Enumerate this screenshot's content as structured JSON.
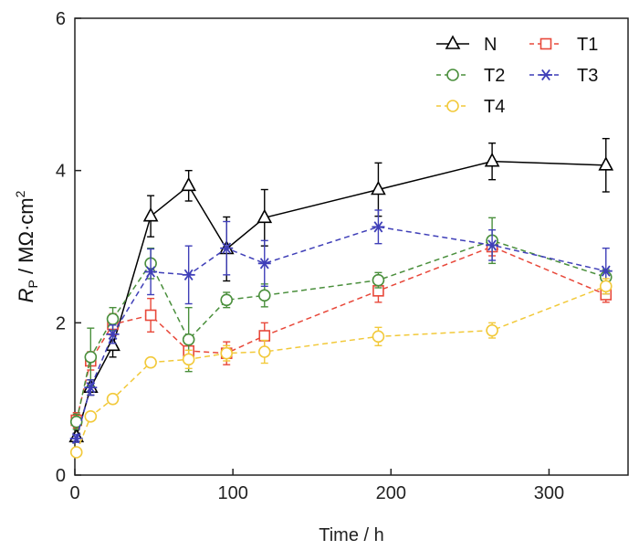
{
  "chart_data": {
    "type": "line",
    "xlabel": "Time / h",
    "ylabel": {
      "main": "R",
      "sub": "P",
      "rest": " / MΩ·cm",
      "sup": "2"
    },
    "xlim": [
      0,
      350
    ],
    "ylim": [
      0,
      6
    ],
    "xticks": [
      0,
      100,
      200,
      300
    ],
    "yticks": [
      0,
      2,
      4,
      6
    ],
    "grid": false,
    "legend_position": "top-right",
    "series": [
      {
        "name": "N",
        "color": "#000000",
        "marker": "triangle",
        "dashed": false,
        "points": [
          [
            1,
            0.5
          ],
          [
            10,
            1.15
          ],
          [
            24,
            1.7
          ],
          [
            48,
            3.4
          ],
          [
            72,
            3.8
          ],
          [
            96,
            2.97
          ],
          [
            120,
            3.38
          ],
          [
            192,
            3.75
          ],
          [
            264,
            4.12
          ],
          [
            336,
            4.07
          ]
        ],
        "err": [
          0.05,
          0.1,
          0.15,
          0.27,
          0.2,
          0.42,
          0.37,
          0.35,
          0.24,
          0.35
        ]
      },
      {
        "name": "T1",
        "color": "#e8483a",
        "marker": "square",
        "dashed": true,
        "points": [
          [
            1,
            0.72
          ],
          [
            10,
            1.5
          ],
          [
            24,
            1.98
          ],
          [
            48,
            2.1
          ],
          [
            72,
            1.63
          ],
          [
            96,
            1.6
          ],
          [
            120,
            1.83
          ],
          [
            192,
            2.42
          ],
          [
            264,
            3.0
          ],
          [
            336,
            2.37
          ]
        ],
        "err": [
          0.1,
          0.12,
          0.14,
          0.22,
          0.12,
          0.15,
          0.17,
          0.15,
          0.12,
          0.1
        ]
      },
      {
        "name": "T2",
        "color": "#4a8f3c",
        "marker": "circle",
        "dashed": true,
        "points": [
          [
            1,
            0.7
          ],
          [
            10,
            1.55
          ],
          [
            24,
            2.05
          ],
          [
            48,
            2.78
          ],
          [
            72,
            1.78
          ],
          [
            96,
            2.3
          ],
          [
            120,
            2.36
          ],
          [
            192,
            2.56
          ],
          [
            264,
            3.08
          ],
          [
            336,
            2.6
          ]
        ],
        "err": [
          0.1,
          0.38,
          0.15,
          0.2,
          0.42,
          0.1,
          0.15,
          0.1,
          0.3,
          0.1
        ]
      },
      {
        "name": "T3",
        "color": "#3f3fb8",
        "marker": "asterisk",
        "dashed": true,
        "points": [
          [
            1,
            0.48
          ],
          [
            10,
            1.15
          ],
          [
            24,
            1.85
          ],
          [
            48,
            2.67
          ],
          [
            72,
            2.63
          ],
          [
            96,
            2.98
          ],
          [
            120,
            2.78
          ],
          [
            192,
            3.26
          ],
          [
            264,
            3.02
          ],
          [
            336,
            2.68
          ]
        ],
        "err": [
          0.05,
          0.1,
          0.12,
          0.3,
          0.38,
          0.35,
          0.3,
          0.22,
          0.2,
          0.3
        ]
      },
      {
        "name": "T4",
        "color": "#f2c93a",
        "marker": "circle",
        "dashed": true,
        "points": [
          [
            1,
            0.3
          ],
          [
            10,
            0.77
          ],
          [
            24,
            1.0
          ],
          [
            48,
            1.48
          ],
          [
            72,
            1.52
          ],
          [
            96,
            1.6
          ],
          [
            120,
            1.62
          ],
          [
            192,
            1.82
          ],
          [
            264,
            1.9
          ],
          [
            336,
            2.48
          ]
        ],
        "err": [
          0.05,
          0.05,
          0.05,
          0.05,
          0.12,
          0.1,
          0.15,
          0.12,
          0.1,
          0.1
        ]
      }
    ]
  }
}
